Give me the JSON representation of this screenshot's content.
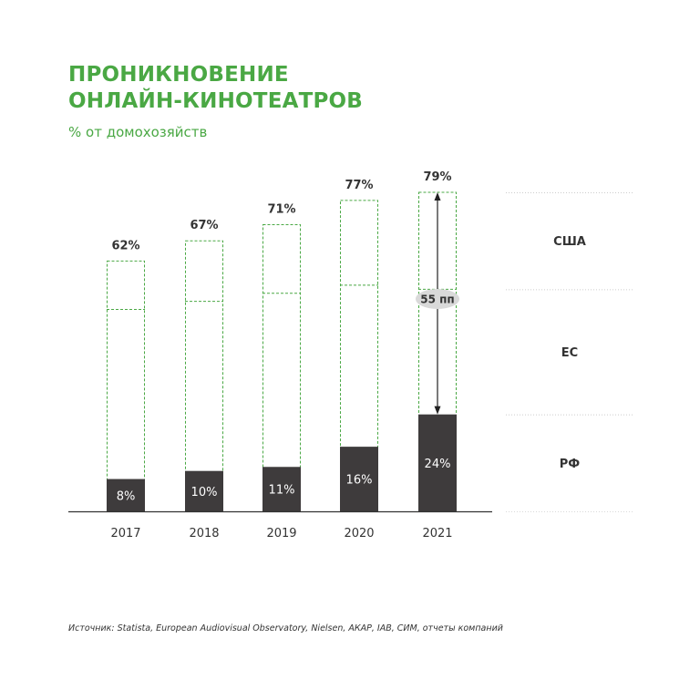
{
  "title_lines": [
    "ПРОНИКНОВЕНИЕ",
    "ОНЛАЙН-КИНОТЕАТРОВ"
  ],
  "subtitle": "% от домохозяйств",
  "source": "Источник: Statista, European Audiovisual Observatory, Nielsen, АКАР, IAB, СИМ, отчеты компаний",
  "colors": {
    "accent": "#4aa844",
    "bar_fill": "#3e3b3c",
    "text": "#333333"
  },
  "chart_data": {
    "type": "bar",
    "categories": [
      "2017",
      "2018",
      "2019",
      "2020",
      "2021"
    ],
    "ylim": [
      0,
      100
    ],
    "series": [
      {
        "name": "РФ",
        "values": [
          8,
          10,
          11,
          16,
          24
        ],
        "labels": [
          "8%",
          "10%",
          "11%",
          "16%",
          "24%"
        ]
      },
      {
        "name": "ЕС",
        "values": [
          50,
          52,
          54,
          56,
          55
        ]
      },
      {
        "name": "США",
        "values": [
          62,
          67,
          71,
          77,
          79
        ]
      }
    ],
    "total_labels": [
      "62%",
      "67%",
      "71%",
      "77%",
      "79%"
    ],
    "annotation": {
      "category": "2021",
      "from": 24,
      "to": 79,
      "label": "55 пп"
    },
    "legend": [
      "США",
      "ЕС",
      "РФ"
    ]
  }
}
